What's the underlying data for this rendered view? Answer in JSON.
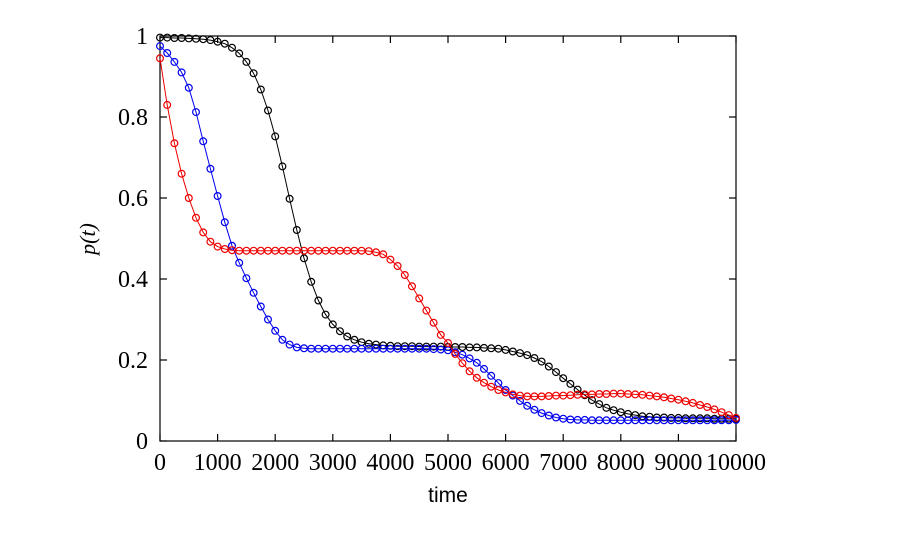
{
  "chart_data": {
    "type": "line",
    "title": "",
    "xlabel": "time",
    "ylabel": "p(t)",
    "xlim": [
      0,
      10000
    ],
    "ylim": [
      0,
      1
    ],
    "xticks": [
      0,
      1000,
      2000,
      3000,
      4000,
      5000,
      6000,
      7000,
      8000,
      9000,
      10000
    ],
    "xtick_labels": [
      "0",
      "1000",
      "2000",
      "3000",
      "4000",
      "5000",
      "6000",
      "7000",
      "8000",
      "9000",
      "10000"
    ],
    "yticks": [
      0,
      0.2,
      0.4,
      0.6,
      0.8,
      1
    ],
    "ytick_labels": [
      "0",
      "0.2",
      "0.4",
      "0.6",
      "0.8",
      "1"
    ],
    "grid": false,
    "legend": "none",
    "marker": "open-circle",
    "background": "#ffffff",
    "axes_color": "#000000",
    "x": [
      0,
      125,
      250,
      375,
      500,
      625,
      750,
      875,
      1000,
      1125,
      1250,
      1375,
      1500,
      1625,
      1750,
      1875,
      2000,
      2125,
      2250,
      2375,
      2500,
      2625,
      2750,
      2875,
      3000,
      3125,
      3250,
      3375,
      3500,
      3625,
      3750,
      3875,
      4000,
      4125,
      4250,
      4375,
      4500,
      4625,
      4750,
      4875,
      5000,
      5125,
      5250,
      5375,
      5500,
      5625,
      5750,
      5875,
      6000,
      6125,
      6250,
      6375,
      6500,
      6625,
      6750,
      6875,
      7000,
      7125,
      7250,
      7375,
      7500,
      7625,
      7750,
      7875,
      8000,
      8125,
      8250,
      8375,
      8500,
      8625,
      8750,
      8875,
      9000,
      9125,
      9250,
      9375,
      9500,
      9625,
      9750,
      9875,
      10000
    ],
    "series": [
      {
        "name": "black",
        "color": "#000000",
        "y": [
          0.996,
          0.996,
          0.995,
          0.995,
          0.994,
          0.993,
          0.992,
          0.99,
          0.986,
          0.981,
          0.971,
          0.957,
          0.936,
          0.908,
          0.868,
          0.816,
          0.752,
          0.678,
          0.598,
          0.521,
          0.451,
          0.393,
          0.347,
          0.312,
          0.288,
          0.271,
          0.258,
          0.25,
          0.244,
          0.24,
          0.238,
          0.236,
          0.235,
          0.234,
          0.234,
          0.234,
          0.233,
          0.233,
          0.233,
          0.233,
          0.232,
          0.232,
          0.232,
          0.231,
          0.231,
          0.23,
          0.229,
          0.228,
          0.225,
          0.221,
          0.217,
          0.212,
          0.205,
          0.196,
          0.184,
          0.17,
          0.155,
          0.141,
          0.127,
          0.113,
          0.101,
          0.091,
          0.082,
          0.076,
          0.071,
          0.067,
          0.064,
          0.061,
          0.06,
          0.058,
          0.058,
          0.057,
          0.057,
          0.056,
          0.056,
          0.056,
          0.056,
          0.055,
          0.055,
          0.055,
          0.055
        ]
      },
      {
        "name": "blue",
        "color": "#0000ee",
        "y": [
          0.975,
          0.958,
          0.936,
          0.91,
          0.872,
          0.812,
          0.74,
          0.672,
          0.605,
          0.54,
          0.482,
          0.44,
          0.402,
          0.366,
          0.332,
          0.3,
          0.272,
          0.25,
          0.238,
          0.231,
          0.229,
          0.228,
          0.228,
          0.228,
          0.228,
          0.228,
          0.228,
          0.228,
          0.228,
          0.228,
          0.228,
          0.228,
          0.228,
          0.228,
          0.228,
          0.228,
          0.228,
          0.228,
          0.227,
          0.226,
          0.224,
          0.219,
          0.213,
          0.204,
          0.193,
          0.178,
          0.161,
          0.143,
          0.126,
          0.112,
          0.099,
          0.087,
          0.077,
          0.069,
          0.063,
          0.058,
          0.055,
          0.053,
          0.052,
          0.052,
          0.051,
          0.051,
          0.051,
          0.051,
          0.051,
          0.051,
          0.051,
          0.051,
          0.051,
          0.051,
          0.051,
          0.051,
          0.051,
          0.051,
          0.051,
          0.051,
          0.051,
          0.051,
          0.051,
          0.051,
          0.052
        ]
      },
      {
        "name": "red",
        "color": "#ee0000",
        "y": [
          0.945,
          0.83,
          0.735,
          0.66,
          0.6,
          0.551,
          0.515,
          0.492,
          0.48,
          0.474,
          0.471,
          0.47,
          0.47,
          0.47,
          0.47,
          0.47,
          0.47,
          0.47,
          0.47,
          0.47,
          0.47,
          0.47,
          0.47,
          0.47,
          0.47,
          0.47,
          0.47,
          0.47,
          0.47,
          0.469,
          0.466,
          0.461,
          0.448,
          0.432,
          0.41,
          0.382,
          0.352,
          0.322,
          0.292,
          0.262,
          0.242,
          0.215,
          0.192,
          0.172,
          0.156,
          0.144,
          0.134,
          0.126,
          0.12,
          0.115,
          0.112,
          0.11,
          0.11,
          0.11,
          0.111,
          0.112,
          0.112,
          0.113,
          0.114,
          0.115,
          0.115,
          0.116,
          0.116,
          0.117,
          0.117,
          0.116,
          0.115,
          0.114,
          0.112,
          0.11,
          0.108,
          0.105,
          0.102,
          0.098,
          0.094,
          0.089,
          0.084,
          0.078,
          0.071,
          0.064,
          0.057
        ]
      }
    ]
  }
}
